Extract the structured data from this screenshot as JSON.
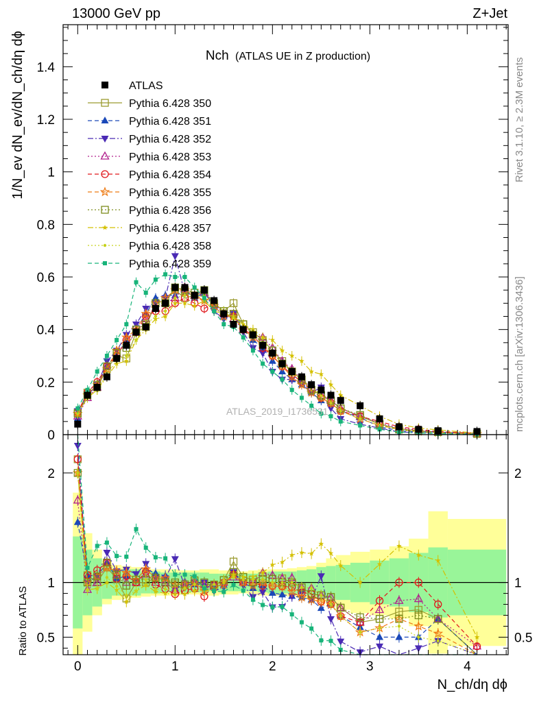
{
  "header": {
    "energy_label": "13000 GeV pp",
    "process_label": "Z+Jet"
  },
  "side": {
    "rivet_label": "Rivet 3.1.10, ≥ 2.3M events",
    "mcplots_label": "mcplots.cern.ch [arXiv:1306.3436]"
  },
  "chart_data": {
    "type": "line",
    "title": "Nch",
    "subtitle": "(ATLAS UE in Z production)",
    "watermark": "ATLAS_2019_I1736531",
    "xlabel": "N_ch/dη dϕ",
    "ylabel": "1/N_ev dN_ev/dN_ch/dη dϕ",
    "ratio_ylabel": "Ratio to ATLAS",
    "xlim": [
      -0.15,
      4.42
    ],
    "ylim": [
      0,
      1.56
    ],
    "ratio_ylim": [
      0.34,
      2.35
    ],
    "x_ticks": [
      "0",
      "1",
      "2",
      "3",
      "4"
    ],
    "y_ticks": [
      "0",
      "0.2",
      "0.4",
      "0.6",
      "0.8",
      "1",
      "1.2",
      "1.4"
    ],
    "ratio_ticks": [
      "0.5",
      "1",
      "2"
    ],
    "x": [
      0,
      0.1,
      0.2,
      0.3,
      0.4,
      0.5,
      0.6,
      0.7,
      0.8,
      0.9,
      1.0,
      1.1,
      1.2,
      1.3,
      1.4,
      1.5,
      1.6,
      1.7,
      1.8,
      1.9,
      2.0,
      2.1,
      2.2,
      2.3,
      2.4,
      2.5,
      2.6,
      2.7,
      2.9,
      3.1,
      3.3,
      3.5,
      3.7,
      4.1
    ],
    "band_x": [
      -0.05,
      0.05,
      0.15,
      0.25,
      0.35,
      0.45,
      0.55,
      0.65,
      0.75,
      0.85,
      0.95,
      1.05,
      1.15,
      1.25,
      1.35,
      1.45,
      1.55,
      1.65,
      1.75,
      1.85,
      1.95,
      2.05,
      2.15,
      2.25,
      2.35,
      2.45,
      2.55,
      2.65,
      2.8,
      3.0,
      3.2,
      3.4,
      3.6,
      3.8,
      4.4
    ],
    "band_inner": [
      0.42,
      0.3,
      0.22,
      0.15,
      0.12,
      0.12,
      0.12,
      0.1,
      0.1,
      0.09,
      0.09,
      0.09,
      0.09,
      0.09,
      0.08,
      0.08,
      0.08,
      0.08,
      0.08,
      0.09,
      0.1,
      0.1,
      0.1,
      0.11,
      0.12,
      0.14,
      0.15,
      0.16,
      0.18,
      0.2,
      0.22,
      0.27,
      0.32,
      0.3
    ],
    "band_outer": [
      0.82,
      0.45,
      0.3,
      0.2,
      0.16,
      0.15,
      0.14,
      0.13,
      0.12,
      0.12,
      0.12,
      0.11,
      0.11,
      0.12,
      0.12,
      0.11,
      0.11,
      0.1,
      0.11,
      0.12,
      0.12,
      0.12,
      0.13,
      0.14,
      0.15,
      0.18,
      0.22,
      0.25,
      0.28,
      0.3,
      0.33,
      0.4,
      0.65,
      0.58
    ],
    "series": [
      {
        "name": "ATLAS",
        "color": "#000000",
        "marker": "filled-square",
        "dash": "none",
        "values": [
          0.04,
          0.15,
          0.18,
          0.22,
          0.29,
          0.34,
          0.39,
          0.41,
          0.48,
          0.5,
          0.56,
          0.56,
          0.53,
          0.55,
          0.51,
          0.46,
          0.42,
          0.4,
          0.38,
          0.34,
          0.31,
          0.27,
          0.24,
          0.22,
          0.19,
          0.17,
          0.15,
          0.13,
          0.11,
          0.06,
          0.03,
          0.02,
          0.015,
          0.012
        ]
      },
      {
        "name": "Pythia 6.428 350",
        "color": "#9a9a2e",
        "marker": "open-square",
        "dash": "solid",
        "values": [
          0.085,
          0.16,
          0.18,
          0.25,
          0.3,
          0.29,
          0.39,
          0.41,
          0.5,
          0.51,
          0.55,
          0.52,
          0.53,
          0.54,
          0.5,
          0.47,
          0.5,
          0.42,
          0.39,
          0.36,
          0.32,
          0.28,
          0.24,
          0.21,
          0.17,
          0.15,
          0.13,
          0.1,
          0.07,
          0.04,
          0.022,
          0.015,
          0.01,
          0.004
        ]
      },
      {
        "name": "Pythia 6.428 351",
        "color": "#1a48b8",
        "marker": "filled-triangle-up",
        "dash": "dashed",
        "values": [
          0.062,
          0.16,
          0.19,
          0.26,
          0.3,
          0.36,
          0.4,
          0.46,
          0.52,
          0.53,
          0.53,
          0.55,
          0.52,
          0.54,
          0.49,
          0.45,
          0.46,
          0.4,
          0.36,
          0.33,
          0.28,
          0.24,
          0.21,
          0.19,
          0.16,
          0.13,
          0.12,
          0.09,
          0.065,
          0.03,
          0.015,
          0.01,
          0.01,
          0.003
        ]
      },
      {
        "name": "Pythia 6.428 352",
        "color": "#4a2ab4",
        "marker": "filled-triangle-down",
        "dash": "dashdot",
        "values": [
          0.09,
          0.15,
          0.19,
          0.28,
          0.32,
          0.38,
          0.42,
          0.48,
          0.5,
          0.52,
          0.68,
          0.54,
          0.53,
          0.55,
          0.47,
          0.44,
          0.46,
          0.39,
          0.33,
          0.31,
          0.24,
          0.21,
          0.21,
          0.2,
          0.16,
          0.18,
          0.1,
          0.06,
          0.04,
          0.025,
          0.01,
          0.008,
          0.007,
          0.003
        ]
      },
      {
        "name": "Pythia 6.428 353",
        "color": "#b01f8c",
        "marker": "open-triangle-up",
        "dash": "dotted",
        "values": [
          0.07,
          0.14,
          0.18,
          0.26,
          0.31,
          0.34,
          0.39,
          0.44,
          0.48,
          0.5,
          0.52,
          0.56,
          0.53,
          0.54,
          0.5,
          0.46,
          0.44,
          0.4,
          0.38,
          0.37,
          0.33,
          0.28,
          0.25,
          0.21,
          0.18,
          0.15,
          0.13,
          0.1,
          0.07,
          0.045,
          0.025,
          0.017,
          0.01,
          0.005
        ]
      },
      {
        "name": "Pythia 6.428 354",
        "color": "#e0161b",
        "marker": "open-circle",
        "dash": "dashed",
        "values": [
          0.085,
          0.16,
          0.2,
          0.26,
          0.3,
          0.36,
          0.39,
          0.45,
          0.47,
          0.47,
          0.5,
          0.52,
          0.5,
          0.48,
          0.5,
          0.46,
          0.45,
          0.4,
          0.38,
          0.33,
          0.3,
          0.26,
          0.23,
          0.2,
          0.17,
          0.14,
          0.12,
          0.09,
          0.07,
          0.05,
          0.03,
          0.02,
          0.012,
          0.005
        ]
      },
      {
        "name": "Pythia 6.428 355",
        "color": "#ee7a12",
        "marker": "open-star",
        "dash": "dashed",
        "values": [
          0.08,
          0.15,
          0.19,
          0.25,
          0.32,
          0.37,
          0.4,
          0.46,
          0.5,
          0.52,
          0.55,
          0.55,
          0.53,
          0.51,
          0.49,
          0.45,
          0.45,
          0.4,
          0.37,
          0.34,
          0.3,
          0.26,
          0.22,
          0.19,
          0.16,
          0.14,
          0.12,
          0.09,
          0.06,
          0.035,
          0.02,
          0.012,
          0.008,
          0.003
        ]
      },
      {
        "name": "Pythia 6.428 356",
        "color": "#7c8c1c",
        "marker": "open-square",
        "dash": "dotted",
        "values": [
          0.08,
          0.15,
          0.19,
          0.26,
          0.31,
          0.33,
          0.4,
          0.42,
          0.5,
          0.5,
          0.56,
          0.55,
          0.54,
          0.55,
          0.5,
          0.47,
          0.46,
          0.42,
          0.38,
          0.35,
          0.32,
          0.27,
          0.24,
          0.21,
          0.17,
          0.15,
          0.13,
          0.1,
          0.075,
          0.04,
          0.02,
          0.014,
          0.01,
          0.003
        ]
      },
      {
        "name": "Pythia 6.428 357",
        "color": "#d4c000",
        "marker": "small-star",
        "dash": "dashdot",
        "values": [
          0.08,
          0.14,
          0.17,
          0.22,
          0.27,
          0.28,
          0.36,
          0.4,
          0.44,
          0.45,
          0.5,
          0.5,
          0.49,
          0.51,
          0.47,
          0.46,
          0.45,
          0.42,
          0.4,
          0.37,
          0.36,
          0.32,
          0.3,
          0.28,
          0.24,
          0.23,
          0.19,
          0.15,
          0.11,
          0.07,
          0.04,
          0.025,
          0.018,
          0.006
        ]
      },
      {
        "name": "Pythia 6.428 358",
        "color": "#c6d21a",
        "marker": "small-dot",
        "dash": "dotted",
        "values": [
          0.08,
          0.14,
          0.17,
          0.23,
          0.28,
          0.3,
          0.36,
          0.42,
          0.45,
          0.47,
          0.52,
          0.53,
          0.52,
          0.53,
          0.5,
          0.47,
          0.44,
          0.41,
          0.39,
          0.35,
          0.31,
          0.27,
          0.24,
          0.21,
          0.18,
          0.15,
          0.12,
          0.09,
          0.06,
          0.035,
          0.018,
          0.01,
          0.007,
          0.002
        ]
      },
      {
        "name": "Pythia 6.428 359",
        "color": "#18b47a",
        "marker": "filled-square-small",
        "dash": "dashed",
        "values": [
          0.1,
          0.17,
          0.24,
          0.3,
          0.36,
          0.42,
          0.58,
          0.54,
          0.59,
          0.61,
          0.6,
          0.6,
          0.56,
          0.52,
          0.47,
          0.42,
          0.41,
          0.37,
          0.32,
          0.27,
          0.24,
          0.21,
          0.17,
          0.14,
          0.11,
          0.08,
          0.07,
          0.05,
          0.035,
          0.02,
          0.01,
          0.006,
          0.004,
          0.001
        ]
      }
    ]
  }
}
